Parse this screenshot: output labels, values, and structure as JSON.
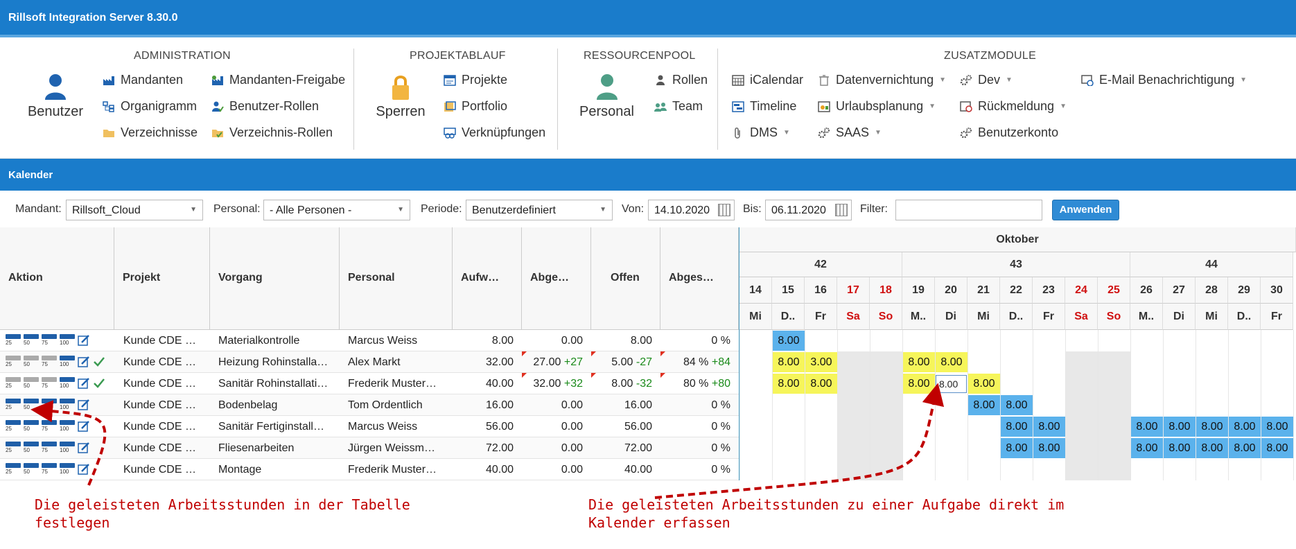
{
  "app": {
    "title": "Rillsoft Integration Server 8.30.0"
  },
  "ribbon": {
    "administration": {
      "title": "ADMINISTRATION",
      "big": "Benutzer",
      "items": [
        "Mandanten",
        "Mandanten-Freigabe",
        "Organigramm",
        "Benutzer-Rollen",
        "Verzeichnisse",
        "Verzeichnis-Rollen"
      ]
    },
    "projektablauf": {
      "title": "PROJEKTABLAUF",
      "big": "Sperren",
      "items": [
        "Projekte",
        "Portfolio",
        "Verknüpfungen"
      ]
    },
    "ressourcenpool": {
      "title": "RESSOURCENPOOL",
      "big": "Personal",
      "items": [
        "Rollen",
        "Team"
      ]
    },
    "zusatzmodule": {
      "title": "ZUSATZMODULE",
      "items": [
        "iCalendar",
        "Datenvernichtung",
        "Dev",
        "E-Mail Benachrichtigung",
        "Timeline",
        "Urlaubsplanung",
        "Rückmeldung",
        "DMS",
        "SAAS",
        "Benutzerkonto"
      ]
    }
  },
  "section": {
    "title": "Kalender"
  },
  "filters": {
    "mandant_label": "Mandant:",
    "mandant_value": "Rillsoft_Cloud",
    "personal_label": "Personal:",
    "personal_value": "- Alle Personen -",
    "periode_label": "Periode:",
    "periode_value": "Benutzerdefiniert",
    "von_label": "Von:",
    "von_value": "14.10.2020",
    "bis_label": "Bis:",
    "bis_value": "06.11.2020",
    "filter_label": "Filter:",
    "filter_value": "",
    "apply": "Anwenden"
  },
  "table": {
    "columns": [
      "Aktion",
      "Projekt",
      "Vorgang",
      "Personal",
      "Aufw…",
      "Abge…",
      "Offen",
      "Abges…"
    ],
    "progress_labels": [
      "25",
      "50",
      "75",
      "100"
    ],
    "rows": [
      {
        "projekt": "Kunde CDE …",
        "vorgang": "Materialkontrolle",
        "personal": "Marcus Weiss",
        "aufw": "8.00",
        "abge": "0.00",
        "abge_d": "",
        "offen": "8.00",
        "offen_d": "",
        "abges": "0 %",
        "abges_d": ""
      },
      {
        "projekt": "Kunde CDE …",
        "vorgang": "Heizung Rohinstalla…",
        "personal": "Alex Markt",
        "aufw": "32.00",
        "abge": "27.00",
        "abge_d": "+27",
        "offen": "5.00",
        "offen_d": "-27",
        "abges": "84 %",
        "abges_d": "+84"
      },
      {
        "projekt": "Kunde CDE …",
        "vorgang": "Sanitär Rohinstallati…",
        "personal": "Frederik Muster…",
        "aufw": "40.00",
        "abge": "32.00",
        "abge_d": "+32",
        "offen": "8.00",
        "offen_d": "-32",
        "abges": "80 %",
        "abges_d": "+80"
      },
      {
        "projekt": "Kunde CDE …",
        "vorgang": "Bodenbelag",
        "personal": "Tom Ordentlich",
        "aufw": "16.00",
        "abge": "0.00",
        "abge_d": "",
        "offen": "16.00",
        "offen_d": "",
        "abges": "0 %",
        "abges_d": ""
      },
      {
        "projekt": "Kunde CDE …",
        "vorgang": "Sanitär Fertiginstall…",
        "personal": "Marcus Weiss",
        "aufw": "56.00",
        "abge": "0.00",
        "abge_d": "",
        "offen": "56.00",
        "offen_d": "",
        "abges": "0 %",
        "abges_d": ""
      },
      {
        "projekt": "Kunde CDE …",
        "vorgang": "Fliesenarbeiten",
        "personal": "Jürgen Weissm…",
        "aufw": "72.00",
        "abge": "0.00",
        "abge_d": "",
        "offen": "72.00",
        "offen_d": "",
        "abges": "0 %",
        "abges_d": ""
      },
      {
        "projekt": "Kunde CDE …",
        "vorgang": "Montage",
        "personal": "Frederik Muster…",
        "aufw": "40.00",
        "abge": "0.00",
        "abge_d": "",
        "offen": "40.00",
        "offen_d": "",
        "abges": "0 %",
        "abges_d": ""
      }
    ]
  },
  "calendar": {
    "month": "Oktober",
    "weeks": [
      "42",
      "43",
      "44"
    ],
    "days": [
      "14",
      "15",
      "16",
      "17",
      "18",
      "19",
      "20",
      "21",
      "22",
      "23",
      "24",
      "25",
      "26",
      "27",
      "28",
      "29",
      "30"
    ],
    "weekdays": [
      "Mi",
      "D..",
      "Fr",
      "Sa",
      "So",
      "M..",
      "Di",
      "Mi",
      "D..",
      "Fr",
      "Sa",
      "So",
      "M..",
      "Di",
      "Mi",
      "D..",
      "Fr"
    ],
    "entries": [
      {
        "row": 0,
        "day": 1,
        "value": "8.00",
        "kind": "blue"
      },
      {
        "row": 1,
        "day": 1,
        "value": "8.00",
        "kind": "yellow"
      },
      {
        "row": 1,
        "day": 2,
        "value": "3.00",
        "kind": "yellow"
      },
      {
        "row": 1,
        "day": 5,
        "value": "8.00",
        "kind": "yellow"
      },
      {
        "row": 1,
        "day": 6,
        "value": "8.00",
        "kind": "yellow"
      },
      {
        "row": 2,
        "day": 1,
        "value": "8.00",
        "kind": "yellow"
      },
      {
        "row": 2,
        "day": 2,
        "value": "8.00",
        "kind": "yellow"
      },
      {
        "row": 2,
        "day": 5,
        "value": "8.00",
        "kind": "yellow"
      },
      {
        "row": 2,
        "day": 6,
        "value": "8.00",
        "kind": "input"
      },
      {
        "row": 2,
        "day": 7,
        "value": "8.00",
        "kind": "yellow"
      },
      {
        "row": 3,
        "day": 7,
        "value": "8.00",
        "kind": "blue"
      },
      {
        "row": 3,
        "day": 8,
        "value": "8.00",
        "kind": "blue"
      },
      {
        "row": 4,
        "day": 8,
        "value": "8.00",
        "kind": "blue"
      },
      {
        "row": 4,
        "day": 9,
        "value": "8.00",
        "kind": "blue"
      },
      {
        "row": 4,
        "day": 12,
        "value": "8.00",
        "kind": "blue"
      },
      {
        "row": 4,
        "day": 13,
        "value": "8.00",
        "kind": "blue"
      },
      {
        "row": 4,
        "day": 14,
        "value": "8.00",
        "kind": "blue"
      },
      {
        "row": 4,
        "day": 15,
        "value": "8.00",
        "kind": "blue"
      },
      {
        "row": 4,
        "day": 16,
        "value": "8.00",
        "kind": "blue"
      },
      {
        "row": 5,
        "day": 8,
        "value": "8.00",
        "kind": "blue"
      },
      {
        "row": 5,
        "day": 9,
        "value": "8.00",
        "kind": "blue"
      },
      {
        "row": 5,
        "day": 12,
        "value": "8.00",
        "kind": "blue"
      },
      {
        "row": 5,
        "day": 13,
        "value": "8.00",
        "kind": "blue"
      },
      {
        "row": 5,
        "day": 14,
        "value": "8.00",
        "kind": "blue"
      },
      {
        "row": 5,
        "day": 15,
        "value": "8.00",
        "kind": "blue"
      },
      {
        "row": 5,
        "day": 16,
        "value": "8.00",
        "kind": "blue"
      }
    ]
  },
  "annotations": {
    "left": [
      "Die geleisteten Arbeitsstunden in der Tabelle",
      "festlegen"
    ],
    "right": [
      "Die geleisteten Arbeitsstunden zu einer Aufgabe direkt im",
      "Kalender erfassen"
    ]
  },
  "colors": {
    "brand": "#1a7ccb",
    "cell_blue": "#5bb2ec",
    "cell_yellow": "#f6f55a",
    "annotation": "#c00000",
    "positive": "#1a8a1a"
  }
}
